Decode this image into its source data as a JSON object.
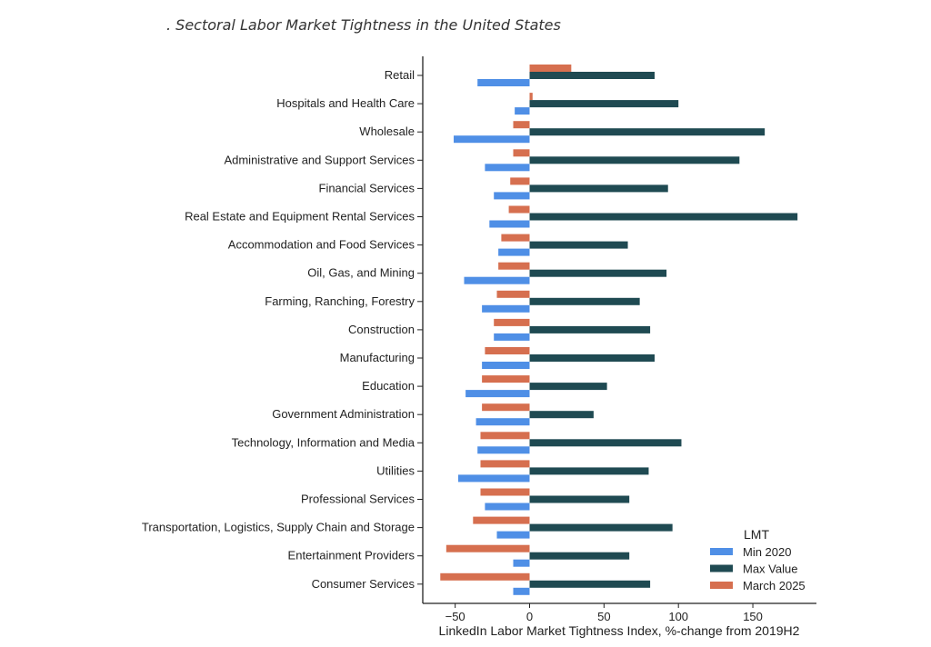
{
  "chart_data": {
    "type": "bar",
    "orientation": "horizontal",
    "title": ". Sectoral Labor Market Tightness in the United States",
    "xlabel": "LinkedIn Labor Market Tightness Index, %-change from 2019H2",
    "ylabel": "",
    "xlim": [
      -72,
      192
    ],
    "xticks": [
      -50,
      0,
      50,
      100,
      150
    ],
    "xtick_labels": [
      "−50",
      "0",
      "50",
      "100",
      "150"
    ],
    "grid": false,
    "legend": {
      "title": "LMT",
      "placement": "bottom-right"
    },
    "categories": [
      "Retail",
      "Hospitals and Health Care",
      "Wholesale",
      "Administrative and Support Services",
      "Financial Services",
      "Real Estate and Equipment Rental Services",
      "Accommodation and Food Services",
      "Oil, Gas, and Mining",
      "Farming, Ranching, Forestry",
      "Construction",
      "Manufacturing",
      "Education",
      "Government Administration",
      "Technology, Information and Media",
      "Utilities",
      "Professional Services",
      "Transportation, Logistics, Supply Chain and Storage",
      "Entertainment Providers",
      "Consumer Services"
    ],
    "series": [
      {
        "name": "Min 2020",
        "color": "#4f8fe6",
        "values": [
          -35,
          -10,
          -51,
          -30,
          -24,
          -27,
          -21,
          -44,
          -32,
          -24,
          -32,
          -43,
          -36,
          -35,
          -48,
          -30,
          -22,
          -11,
          -11
        ]
      },
      {
        "name": "Max Value",
        "color": "#1f4a52",
        "values": [
          84,
          100,
          158,
          141,
          93,
          180,
          66,
          92,
          74,
          81,
          84,
          52,
          43,
          102,
          80,
          67,
          96,
          67,
          81
        ]
      },
      {
        "name": "March 2025",
        "color": "#d66f4f",
        "values": [
          28,
          2,
          -11,
          -11,
          -13,
          -14,
          -19,
          -21,
          -22,
          -24,
          -30,
          -32,
          -32,
          -33,
          -33,
          -33,
          -38,
          -56,
          -60
        ]
      }
    ]
  }
}
